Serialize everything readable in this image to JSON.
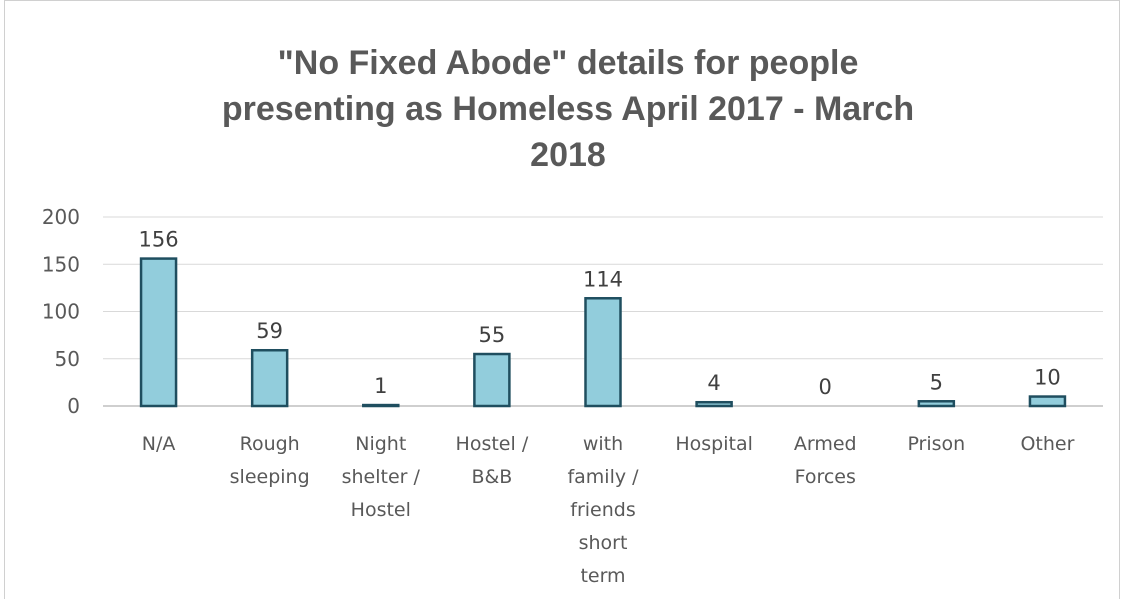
{
  "chart_data": {
    "type": "bar",
    "title_lines": [
      "\"No Fixed Abode\" details for people",
      "presenting as Homeless April  2017 - March",
      "2018"
    ],
    "categories": [
      [
        "N/A"
      ],
      [
        "Rough",
        "sleeping"
      ],
      [
        "Night",
        "shelter /",
        "Hostel"
      ],
      [
        "Hostel /",
        "B&B"
      ],
      [
        "with",
        "family /",
        "friends",
        "short",
        "term"
      ],
      [
        "Hospital"
      ],
      [
        "Armed",
        "Forces"
      ],
      [
        "Prison"
      ],
      [
        "Other"
      ]
    ],
    "values": [
      156,
      59,
      1,
      55,
      114,
      4,
      0,
      5,
      10
    ],
    "ylim": [
      0,
      200
    ],
    "yticks": [
      0,
      50,
      100,
      150,
      200
    ],
    "grid": true,
    "legend": "none",
    "colors": {
      "bar_fill": "#92cddc",
      "bar_stroke": "#1f4e5f",
      "grid": "#d9d9d9",
      "axis": "#bfbfbf"
    }
  }
}
